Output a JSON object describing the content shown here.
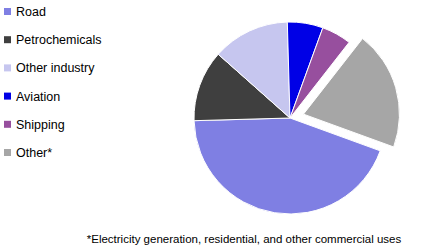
{
  "chart_data": {
    "type": "pie",
    "categories": [
      "Road",
      "Petrochemicals",
      "Other industry",
      "Aviation",
      "Shipping",
      "Other*"
    ],
    "values": [
      44,
      12,
      13,
      6,
      5,
      20
    ],
    "colors": [
      "#7f7fe3",
      "#3f3f3f",
      "#c6c6ef",
      "#0000e6",
      "#974f9e",
      "#a6a6a6"
    ],
    "legend": "left",
    "footnote": "*Electricity generation, residential, and other commercial uses"
  }
}
